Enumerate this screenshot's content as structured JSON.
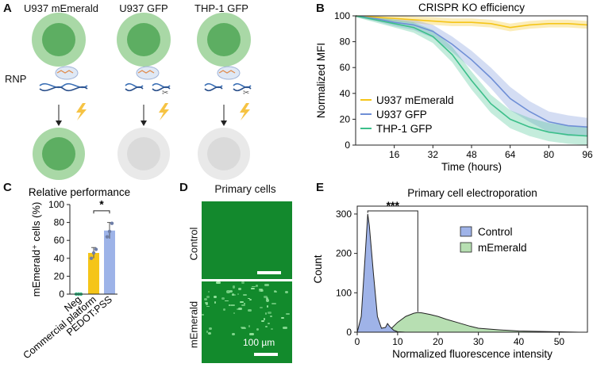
{
  "panels": {
    "a": {
      "label": "A",
      "cells": [
        "U937 mEmerald",
        "U937 GFP",
        "THP-1 GFP"
      ],
      "rnp_label": "RNP"
    },
    "b": {
      "label": "B"
    },
    "c": {
      "label": "C"
    },
    "d": {
      "label": "D",
      "title": "Primary cells",
      "rows": [
        "Control",
        "mEmerald"
      ],
      "scale_label": "100 µm"
    },
    "e": {
      "label": "E"
    }
  },
  "colors": {
    "yellow": "#f5c518",
    "blue": "#6f8fd6",
    "green": "#3cbf8a",
    "cell_green_outer": "#a9d8a6",
    "cell_green_inner": "#5dae62",
    "cell_grey_outer": "#e6e6e6",
    "cell_grey_inner": "#d5d5d5",
    "lightning": "#f6c343"
  },
  "chart_data": [
    {
      "id": "crispr",
      "type": "line",
      "title": "CRISPR KO efficiency",
      "xlabel": "Time (hours)",
      "ylabel": "Normalized MFI",
      "xlim": [
        0,
        96
      ],
      "ylim": [
        0,
        100
      ],
      "xticks": [
        16,
        32,
        48,
        64,
        80,
        96
      ],
      "yticks": [
        0,
        20,
        40,
        60,
        80,
        100
      ],
      "x": [
        0,
        8,
        16,
        24,
        32,
        40,
        48,
        56,
        64,
        72,
        80,
        88,
        96
      ],
      "series": [
        {
          "name": "U937 mEmerald",
          "color": "#f5c518",
          "values": [
            100,
            99,
            98,
            97,
            96,
            95,
            95,
            94,
            91,
            93,
            94,
            94,
            93
          ],
          "band": [
            1,
            1.5,
            2,
            2.5,
            3,
            3,
            3,
            3,
            3,
            3,
            3,
            3,
            3
          ]
        },
        {
          "name": "U937 GFP",
          "color": "#6f8fd6",
          "values": [
            100,
            98,
            95,
            93,
            88,
            78,
            66,
            52,
            36,
            26,
            18,
            15,
            14
          ],
          "band": [
            1,
            2,
            3,
            4,
            5,
            6,
            7,
            8,
            9,
            8,
            8,
            8,
            7
          ]
        },
        {
          "name": "THP-1 GFP",
          "color": "#3cbf8a",
          "values": [
            100,
            97,
            94,
            91,
            84,
            70,
            50,
            32,
            20,
            14,
            10,
            8,
            7
          ],
          "band": [
            1,
            2,
            3,
            4,
            5,
            6,
            7,
            7,
            7,
            7,
            7,
            7,
            7
          ]
        }
      ],
      "legend": "center-left"
    },
    {
      "id": "performance",
      "type": "bar",
      "title": "Relative performance",
      "ylabel": "mEmerald⁺ cells (%)",
      "ylim": [
        0,
        100
      ],
      "yticks": [
        0,
        20,
        40,
        60,
        80,
        100
      ],
      "categories": [
        "Neg",
        "Commercial platform",
        "PEDOT:PSS"
      ],
      "values": [
        0,
        46,
        71
      ],
      "errors": [
        0,
        6,
        9
      ],
      "colors": [
        "#3cbf8a",
        "#f5c518",
        "#9db3e8"
      ],
      "points": [
        [
          0,
          0,
          0
        ],
        [
          40,
          46,
          50
        ],
        [
          64,
          70,
          79
        ]
      ],
      "significance": "*"
    },
    {
      "id": "histogram",
      "type": "area",
      "title": "Primary cell electroporation",
      "xlabel": "Normalized fluorescence intensity",
      "ylabel": "Count",
      "xlim": [
        0,
        57
      ],
      "ylim": [
        0,
        320
      ],
      "xticks": [
        0,
        10,
        20,
        30,
        40,
        50
      ],
      "yticks": [
        0,
        100,
        200,
        300
      ],
      "series": [
        {
          "name": "Control",
          "color": "#9fb3e8",
          "x": [
            0,
            1,
            2,
            2.6,
            3,
            4,
            5,
            6,
            7,
            7.5,
            8,
            9,
            10,
            12
          ],
          "values": [
            0,
            40,
            200,
            300,
            270,
            150,
            40,
            10,
            12,
            22,
            15,
            5,
            1,
            0
          ]
        },
        {
          "name": "mEmerald",
          "color": "#b7dfb2",
          "x": [
            5,
            8,
            10,
            12,
            14,
            15,
            16,
            18,
            20,
            22,
            25,
            28,
            30,
            35,
            40,
            45,
            50,
            55
          ],
          "values": [
            0,
            5,
            25,
            40,
            48,
            50,
            49,
            45,
            40,
            33,
            24,
            15,
            10,
            6,
            3,
            2,
            1,
            0
          ]
        }
      ],
      "significance": "***",
      "legend": "top-right"
    }
  ]
}
